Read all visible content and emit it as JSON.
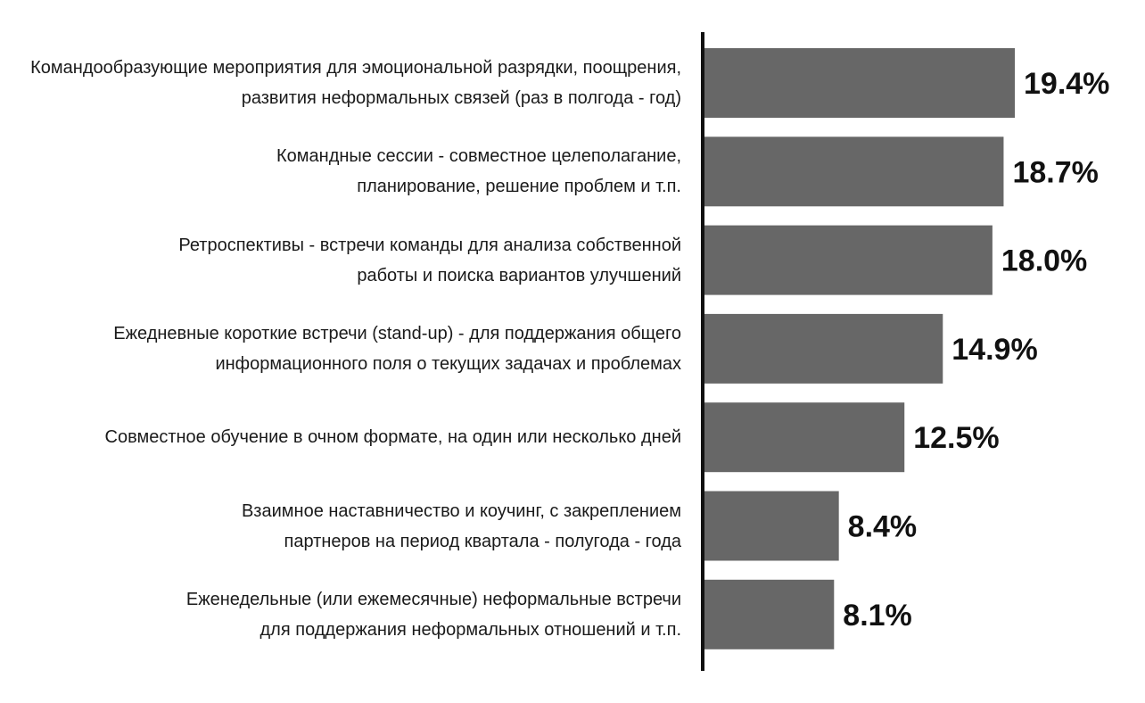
{
  "chart_data": {
    "type": "bar",
    "orientation": "horizontal",
    "categories": [
      [
        "Командообразующие мероприятия для эмоциональной разрядки, поощрения,",
        "развития неформальных связей (раз в полгода - год)"
      ],
      [
        "Командные сессии - совместное целеполагание,",
        "планирование, решение проблем и т.п."
      ],
      [
        "Ретроспективы - встречи команды для анализа собственной",
        "работы и поиска вариантов улучшений"
      ],
      [
        "Ежедневные короткие встречи (stand-up) - для поддержания общего",
        "информационного поля о текущих задачах и проблемах"
      ],
      [
        "Совместное обучение в очном формате, на один или несколько дней"
      ],
      [
        "Взаимное наставничество и коучинг, с закреплением",
        "партнеров на период квартала - полугода - года"
      ],
      [
        "Еженедельные (или ежемесячные) неформальные встречи",
        "для поддержания неформальных отношений и т.п."
      ]
    ],
    "values": [
      19.4,
      18.7,
      18.0,
      14.9,
      12.5,
      8.4,
      8.1
    ],
    "value_labels": [
      "19.4%",
      "18.7%",
      "18.0%",
      "14.9%",
      "12.5%",
      "8.4%",
      "8.1%"
    ],
    "xlim": [
      0,
      19.4
    ],
    "grid": false,
    "bar_color": "#676767",
    "axis_color": "#111111"
  }
}
